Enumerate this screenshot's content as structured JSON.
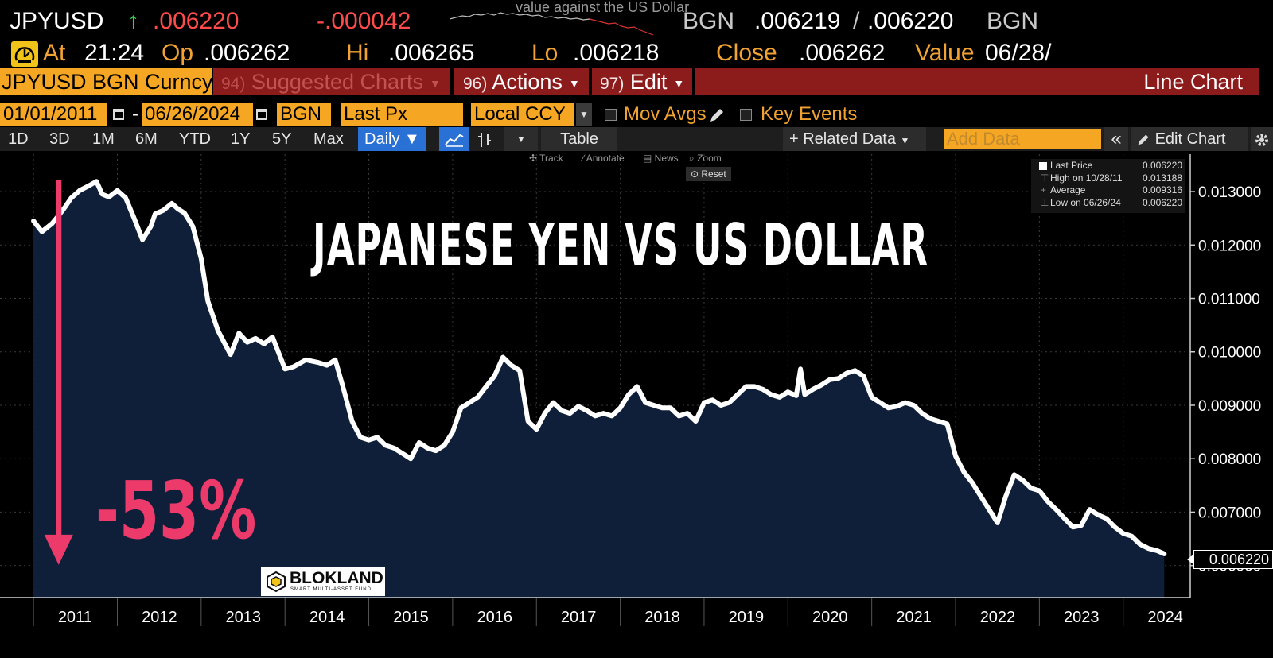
{
  "ticker": {
    "symbol": "JPYUSD",
    "direction_icon": "up-arrow",
    "direction": "↑",
    "last": ".006220",
    "change": "-.000042",
    "caption": "value against the US Dollar",
    "source1": "BGN",
    "bid": ".006219",
    "separator": "/",
    "ask": ".006220",
    "source2": "BGN"
  },
  "quote": {
    "alert_icon": "alert-gauge-icon",
    "at_label": "At",
    "at_value": "21:24",
    "open_label": "Op",
    "open_value": ".006262",
    "high_label": "Hi",
    "high_value": ".006265",
    "low_label": "Lo",
    "low_value": ".006218",
    "close_label": "Close",
    "close_value": ".006262",
    "value_label": "Value",
    "value_value": "06/28/"
  },
  "menu": {
    "security": "JPYUSD BGN Curncy",
    "suggested_num": "94)",
    "suggested": "Suggested Charts",
    "actions_num": "96)",
    "actions": "Actions",
    "edit_num": "97)",
    "edit": "Edit",
    "chart_type": "Line Chart"
  },
  "inputs": {
    "start_date": "01/01/2011",
    "dash": "-",
    "end_date": "06/26/2024",
    "source": "BGN",
    "field": "Last Px",
    "currency": "Local CCY",
    "mov_avgs": "Mov Avgs",
    "key_events": "Key Events"
  },
  "toolbar": {
    "periods": [
      "1D",
      "3D",
      "1M",
      "6M",
      "YTD",
      "1Y",
      "5Y",
      "Max"
    ],
    "frequency": "Daily ▼",
    "table": "Table",
    "related_data": "+ Related Data",
    "add_data_placeholder": "Add Data",
    "collapse": "«",
    "edit_chart": "Edit Chart"
  },
  "chart_tools": {
    "track": "Track",
    "annotate": "Annotate",
    "news": "News",
    "zoom": "Zoom",
    "reset": "Reset"
  },
  "overlay": {
    "title": "JAPANESE YEN VS US DOLLAR",
    "decline": "-53%",
    "logo": "BLOKLAND",
    "logo_sub": "SMART MULTI-ASSET FUND"
  },
  "legend": {
    "rows": [
      {
        "label": "Last Price",
        "value": "0.006220"
      },
      {
        "label": "High on 10/28/11",
        "value": "0.013188"
      },
      {
        "label": "Average",
        "value": "0.009316"
      },
      {
        "label": "Low on 06/26/24",
        "value": "0.006220"
      }
    ]
  },
  "last_price_tag": "0.006220",
  "colors": {
    "accent": "#f5a623",
    "menu_red": "#8c1c1c",
    "down": "#ff4b4b",
    "up": "#38d24a",
    "line": "#ffffff",
    "fill": "#0f1f3a",
    "decline": "#ec3a6b"
  },
  "chart_data": {
    "type": "area",
    "xlabel": "",
    "ylabel": "",
    "xlim": [
      2010.6,
      2024.8
    ],
    "ylim": [
      0.0054,
      0.0137
    ],
    "grid": true,
    "y_ticks": [
      0.013,
      0.012,
      0.011,
      0.01,
      0.009,
      0.008,
      0.007,
      0.006
    ],
    "y_tick_labels": [
      "0.013000",
      "0.012000",
      "0.011000",
      "0.010000",
      "0.009000",
      "0.008000",
      "0.007000",
      "0.006000"
    ],
    "x_tick_labels": [
      "2011",
      "2012",
      "2013",
      "2014",
      "2015",
      "2016",
      "2017",
      "2018",
      "2019",
      "2020",
      "2021",
      "2022",
      "2023",
      "2024"
    ],
    "x_tick_values": [
      2011,
      2012,
      2013,
      2014,
      2015,
      2016,
      2017,
      2018,
      2019,
      2020,
      2021,
      2022,
      2023,
      2024
    ],
    "series": [
      {
        "name": "Last Price",
        "x": [
          2011.0,
          2011.1,
          2011.22,
          2011.3,
          2011.38,
          2011.45,
          2011.55,
          2011.65,
          2011.75,
          2011.82,
          2011.9,
          2012.0,
          2012.1,
          2012.2,
          2012.3,
          2012.4,
          2012.45,
          2012.55,
          2012.65,
          2012.72,
          2012.8,
          2012.9,
          2013.0,
          2013.08,
          2013.2,
          2013.35,
          2013.45,
          2013.55,
          2013.65,
          2013.75,
          2013.85,
          2014.0,
          2014.1,
          2014.25,
          2014.4,
          2014.5,
          2014.6,
          2014.7,
          2014.8,
          2014.9,
          2015.0,
          2015.1,
          2015.2,
          2015.3,
          2015.4,
          2015.5,
          2015.6,
          2015.7,
          2015.8,
          2015.9,
          2016.0,
          2016.1,
          2016.2,
          2016.3,
          2016.4,
          2016.5,
          2016.6,
          2016.7,
          2016.8,
          2016.9,
          2017.0,
          2017.1,
          2017.2,
          2017.3,
          2017.4,
          2017.5,
          2017.6,
          2017.7,
          2017.8,
          2017.9,
          2018.0,
          2018.1,
          2018.2,
          2018.3,
          2018.4,
          2018.5,
          2018.6,
          2018.7,
          2018.8,
          2018.9,
          2019.0,
          2019.1,
          2019.2,
          2019.3,
          2019.4,
          2019.5,
          2019.6,
          2019.7,
          2019.8,
          2019.9,
          2020.0,
          2020.1,
          2020.15,
          2020.2,
          2020.3,
          2020.4,
          2020.5,
          2020.6,
          2020.7,
          2020.8,
          2020.9,
          2021.0,
          2021.1,
          2021.2,
          2021.3,
          2021.4,
          2021.5,
          2021.6,
          2021.7,
          2021.8,
          2021.9,
          2022.0,
          2022.1,
          2022.2,
          2022.3,
          2022.4,
          2022.5,
          2022.6,
          2022.7,
          2022.8,
          2022.9,
          2023.0,
          2023.1,
          2023.2,
          2023.3,
          2023.4,
          2023.5,
          2023.6,
          2023.7,
          2023.8,
          2023.9,
          2024.0,
          2024.1,
          2024.2,
          2024.3,
          2024.4,
          2024.49
        ],
        "values": [
          0.01245,
          0.01225,
          0.0124,
          0.01255,
          0.01272,
          0.01288,
          0.01302,
          0.0131,
          0.01319,
          0.01295,
          0.0129,
          0.01302,
          0.01288,
          0.0125,
          0.0121,
          0.01235,
          0.01258,
          0.01265,
          0.01278,
          0.01268,
          0.0126,
          0.01235,
          0.01175,
          0.01095,
          0.0104,
          0.00995,
          0.01035,
          0.01018,
          0.01025,
          0.01015,
          0.01028,
          0.00968,
          0.00972,
          0.00985,
          0.0098,
          0.00975,
          0.00985,
          0.0093,
          0.0087,
          0.0084,
          0.00835,
          0.0084,
          0.00825,
          0.0082,
          0.0081,
          0.008,
          0.0083,
          0.0082,
          0.00815,
          0.00825,
          0.0085,
          0.00895,
          0.00905,
          0.00915,
          0.00935,
          0.00955,
          0.0099,
          0.00975,
          0.00965,
          0.0087,
          0.00855,
          0.00885,
          0.00905,
          0.0089,
          0.00885,
          0.00898,
          0.0089,
          0.0088,
          0.00885,
          0.0088,
          0.00895,
          0.0092,
          0.00935,
          0.00905,
          0.009,
          0.00895,
          0.00895,
          0.0088,
          0.00885,
          0.0087,
          0.00905,
          0.0091,
          0.009,
          0.00905,
          0.0092,
          0.00935,
          0.00935,
          0.0093,
          0.0092,
          0.00915,
          0.00925,
          0.00918,
          0.00968,
          0.0092,
          0.0093,
          0.00938,
          0.00948,
          0.0095,
          0.0096,
          0.00965,
          0.00955,
          0.00915,
          0.00905,
          0.00895,
          0.00898,
          0.00905,
          0.009,
          0.00885,
          0.00875,
          0.0087,
          0.00865,
          0.00805,
          0.00775,
          0.00755,
          0.0073,
          0.00705,
          0.0068,
          0.0073,
          0.0077,
          0.0076,
          0.00745,
          0.0074,
          0.0072,
          0.00705,
          0.00688,
          0.00672,
          0.00675,
          0.00705,
          0.00695,
          0.00688,
          0.00672,
          0.0066,
          0.00655,
          0.0064,
          0.00632,
          0.00628,
          0.00622
        ]
      }
    ],
    "annotations": [
      {
        "text": "-53%",
        "type": "arrow",
        "from_x": 2011.3,
        "from_y": 0.01319,
        "to_y": 0.00622
      }
    ]
  }
}
